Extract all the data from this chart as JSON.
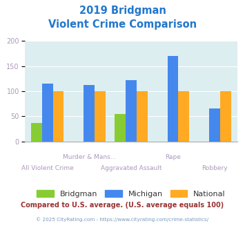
{
  "title_line1": "2019 Bridgman",
  "title_line2": "Violent Crime Comparison",
  "categories": [
    "All Violent Crime",
    "Murder & Mans...",
    "Aggravated Assault",
    "Rape",
    "Robbery"
  ],
  "cat_labels_row1": [
    "",
    "Murder & Mans...",
    "",
    "Rape",
    ""
  ],
  "cat_labels_row2": [
    "All Violent Crime",
    "",
    "Aggravated Assault",
    "",
    "Robbery"
  ],
  "bridgman": [
    37,
    0,
    55,
    0,
    0
  ],
  "michigan": [
    115,
    112,
    122,
    170,
    65
  ],
  "national": [
    100,
    100,
    100,
    100,
    100
  ],
  "color_bridgman": "#88cc33",
  "color_michigan": "#4488ee",
  "color_national": "#ffaa22",
  "ylim": [
    0,
    200
  ],
  "yticks": [
    0,
    50,
    100,
    150,
    200
  ],
  "background_color": "#ddeef0",
  "title_color": "#2277cc",
  "axis_label_color": "#aa99bb",
  "legend_labels": [
    "Bridgman",
    "Michigan",
    "National"
  ],
  "legend_text_color": "#333333",
  "footer_text": "Compared to U.S. average. (U.S. average equals 100)",
  "copyright_text": "© 2025 CityRating.com - https://www.cityrating.com/crime-statistics/",
  "footer_color": "#993333",
  "copyright_color": "#7799bb"
}
